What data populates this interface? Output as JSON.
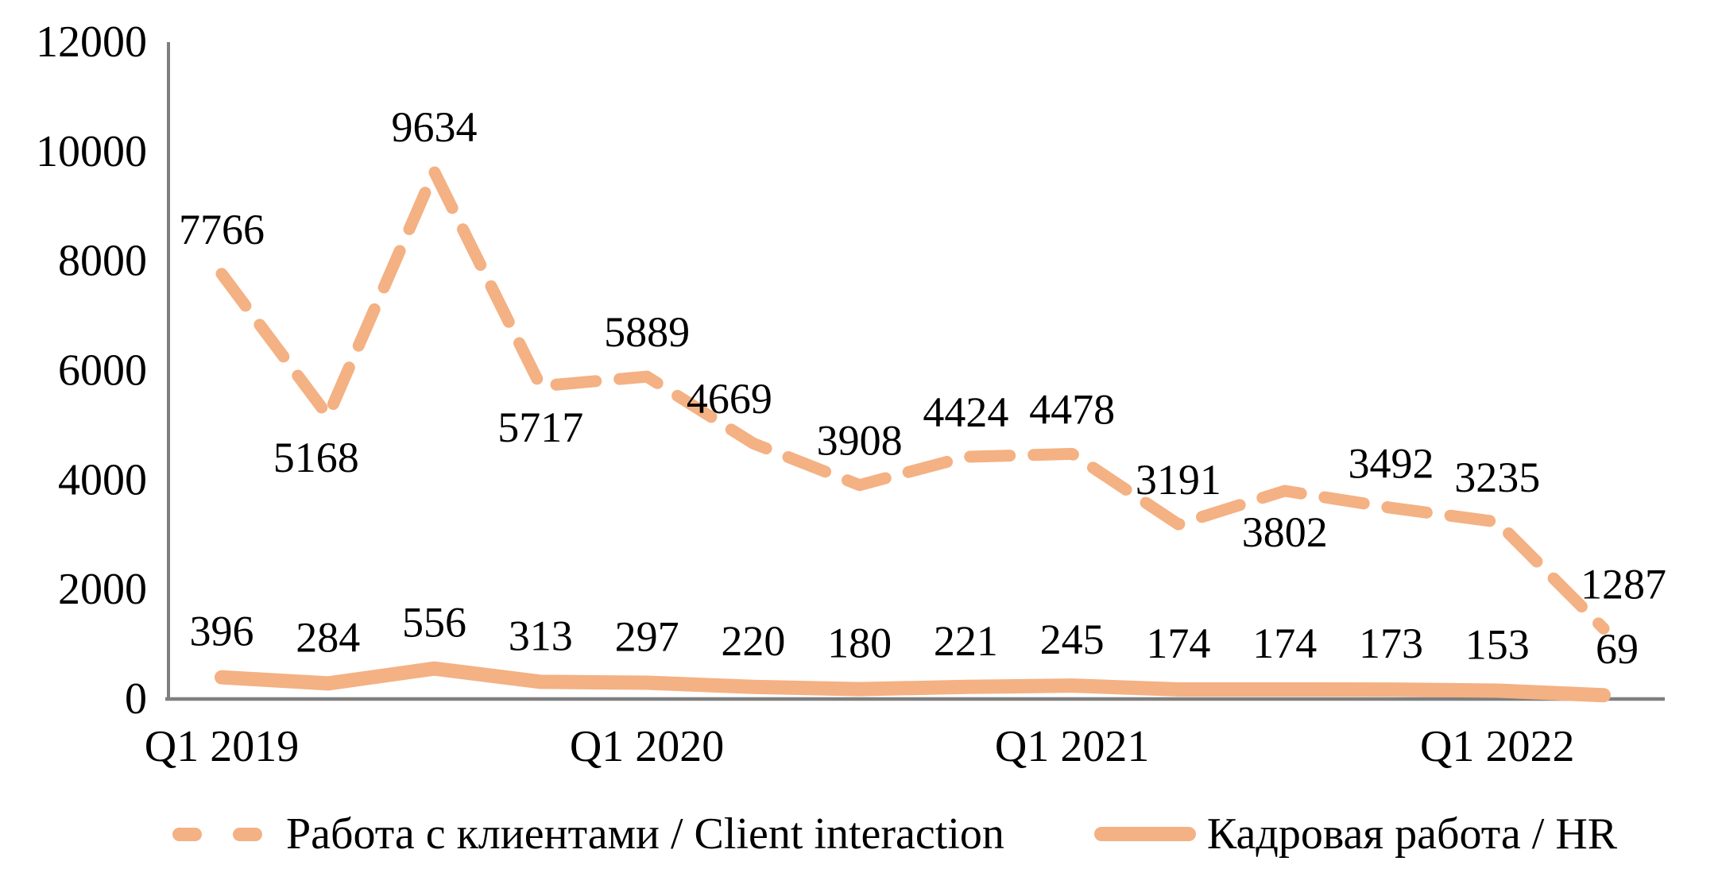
{
  "colors": {
    "accent": "#F4B183",
    "axis": "#7F7F7F",
    "text": "#000000",
    "background": "#FFFFFF"
  },
  "chart_data": {
    "type": "line",
    "title": "",
    "xlabel": "",
    "ylabel": "",
    "ylim": [
      0,
      12000
    ],
    "y_ticks": [
      0,
      2000,
      4000,
      6000,
      8000,
      10000,
      12000
    ],
    "grid": false,
    "n_points": 14,
    "x_tick_labels": [
      "Q1 2019",
      "Q1 2020",
      "Q1 2021",
      "Q1 2022"
    ],
    "x_tick_indices": [
      0,
      4,
      8,
      12
    ],
    "legend_position": "bottom",
    "series": [
      {
        "name": "Работа с клиентами / Client interaction",
        "style": "dashed",
        "color": "#F4B183",
        "values": [
          7766,
          5168,
          9634,
          5717,
          5889,
          4669,
          3908,
          4424,
          4478,
          3191,
          3802,
          3492,
          3235,
          1287
        ],
        "label_placement": [
          "above",
          "below",
          "above",
          "below",
          "above",
          "above",
          "above",
          "above",
          "above",
          "above",
          "below",
          "above",
          "above",
          "above"
        ],
        "label_dx": [
          0,
          -15,
          0,
          0,
          0,
          -30,
          0,
          0,
          0,
          0,
          0,
          0,
          0,
          25
        ]
      },
      {
        "name": "Кадровая работа / HR",
        "style": "solid",
        "color": "#F4B183",
        "values": [
          396,
          284,
          556,
          313,
          297,
          220,
          180,
          221,
          245,
          174,
          174,
          173,
          153,
          69
        ],
        "label_placement": [
          "above",
          "above",
          "above",
          "above",
          "above",
          "above",
          "above",
          "above",
          "above",
          "above",
          "above",
          "above",
          "above",
          "above"
        ],
        "label_dx": [
          0,
          0,
          0,
          0,
          0,
          0,
          0,
          0,
          0,
          0,
          0,
          0,
          0,
          17
        ]
      }
    ]
  },
  "legend": {
    "client_label": "Работа с клиентами / Client interaction",
    "hr_label": "Кадровая работа / HR"
  }
}
